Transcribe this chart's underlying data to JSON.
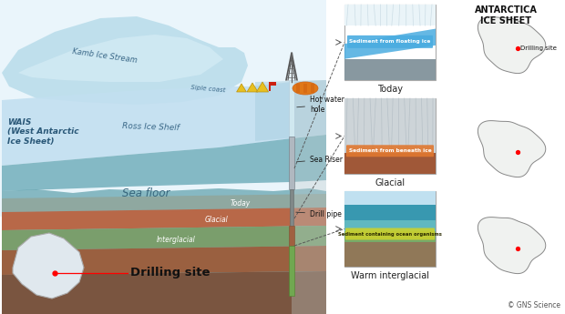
{
  "bg_color": "#ffffff",
  "title": "ANTARCTICA\nICE SHEET",
  "copyright": "© GNS Science",
  "colors": {
    "sky_white": "#eaf5fb",
    "kamb_blue": "#b8dcea",
    "kamb_light": "#d5ecf5",
    "ice_shelf": "#c2dff0",
    "ice_shelf_dark": "#a8cfe0",
    "sea_water": "#6baab8",
    "sea_water2": "#5a9aaa",
    "seafloor_teal": "#5c9faa",
    "seafloor_dark": "#4a8090",
    "layer_gray": "#8fa8a0",
    "layer_brown": "#b86848",
    "layer_green": "#7a9e6c",
    "layer_darkbrown": "#9a6040",
    "layer_base": "#7a5540",
    "drill_silver": "#b0b8c0",
    "drill_dark": "#707880",
    "drill_core_brown": "#a06040",
    "drill_core_green": "#70a850",
    "tent_yellow": "#e8c020",
    "tent_orange": "#d88020",
    "flag_red": "#cc2010",
    "dome_orange": "#e07818",
    "dome_stripe": "#d06010",
    "panel_border": "#aaaaaa",
    "today_ice": "#c8e8f8",
    "today_blue_wedge": "#4aace0",
    "today_gray": "#8898a0",
    "glacial_ice": "#cdd4d8",
    "glacial_brown": "#a05838",
    "glacial_ann": "#e07830",
    "warm_sky": "#c0e0f0",
    "warm_teal1": "#3898b0",
    "warm_teal2": "#60b8c0",
    "warm_green": "#78aa68",
    "warm_brown": "#907858",
    "warm_ann": "#c8d030",
    "ant_fill": "#f0f2f0",
    "ant_border": "#888888"
  },
  "main_labels": {
    "wais": "WAIS\n(West Antarctic\nIce Sheet)",
    "kamb": "Kamb Ice Stream",
    "siple": "Siple coast",
    "ross": "Ross Ice Shelf",
    "seafloor": "Sea floor",
    "today_layer": "Today",
    "glacial_layer": "Glacial",
    "interglacial_layer": "Interglacial",
    "hot_water": "Hot water\nhole",
    "sea_riser": "Sea Riser",
    "drill_pipe": "Drill pipe",
    "drilling_site": "Drilling site"
  }
}
